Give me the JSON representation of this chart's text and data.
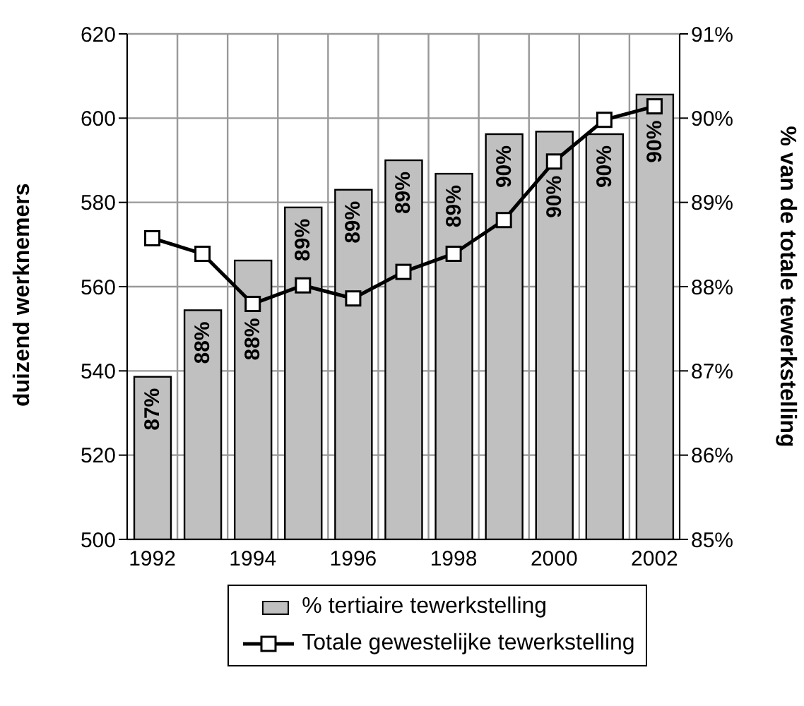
{
  "chart_data": {
    "type": "bar",
    "categories": [
      "1992",
      null,
      "1994",
      null,
      "1996",
      null,
      "1998",
      null,
      "2000",
      null,
      "2002"
    ],
    "ylabel": "duizend werknemers",
    "y2label": "% van de totale tewerkstelling",
    "ylim": [
      500,
      620
    ],
    "yticks": [
      500,
      520,
      540,
      560,
      580,
      600,
      620
    ],
    "y2lim": [
      85,
      91
    ],
    "y2ticks": [
      {
        "value": 85,
        "label": "85%"
      },
      {
        "value": 86,
        "label": "86%"
      },
      {
        "value": 87,
        "label": "87%"
      },
      {
        "value": 88,
        "label": "88%"
      },
      {
        "value": 89,
        "label": "89%"
      },
      {
        "value": 90,
        "label": "90%"
      },
      {
        "value": 91,
        "label": "91%"
      }
    ],
    "grid": true,
    "legend": "bottom",
    "marker": "square",
    "series": [
      {
        "name": "% tertiaire tewerkstelling",
        "axis": "y2",
        "color": "#c0c0c0",
        "values": [
          86.93,
          87.72,
          88.31,
          88.94,
          89.15,
          89.5,
          89.34,
          89.81,
          89.84,
          89.81,
          90.28
        ],
        "value_labels": [
          "87%",
          "88%",
          "88%",
          "89%",
          "89%",
          "89%",
          "89%",
          "90%",
          "90%",
          "90%",
          "90%"
        ]
      },
      {
        "name": "Totale gewestelijke tewerkstelling",
        "type": "line",
        "color": "#000000",
        "values": [
          571.5,
          567.8,
          555.9,
          560.3,
          557.2,
          563.5,
          567.8,
          575.8,
          589.7,
          599.6,
          602.8
        ]
      }
    ]
  }
}
